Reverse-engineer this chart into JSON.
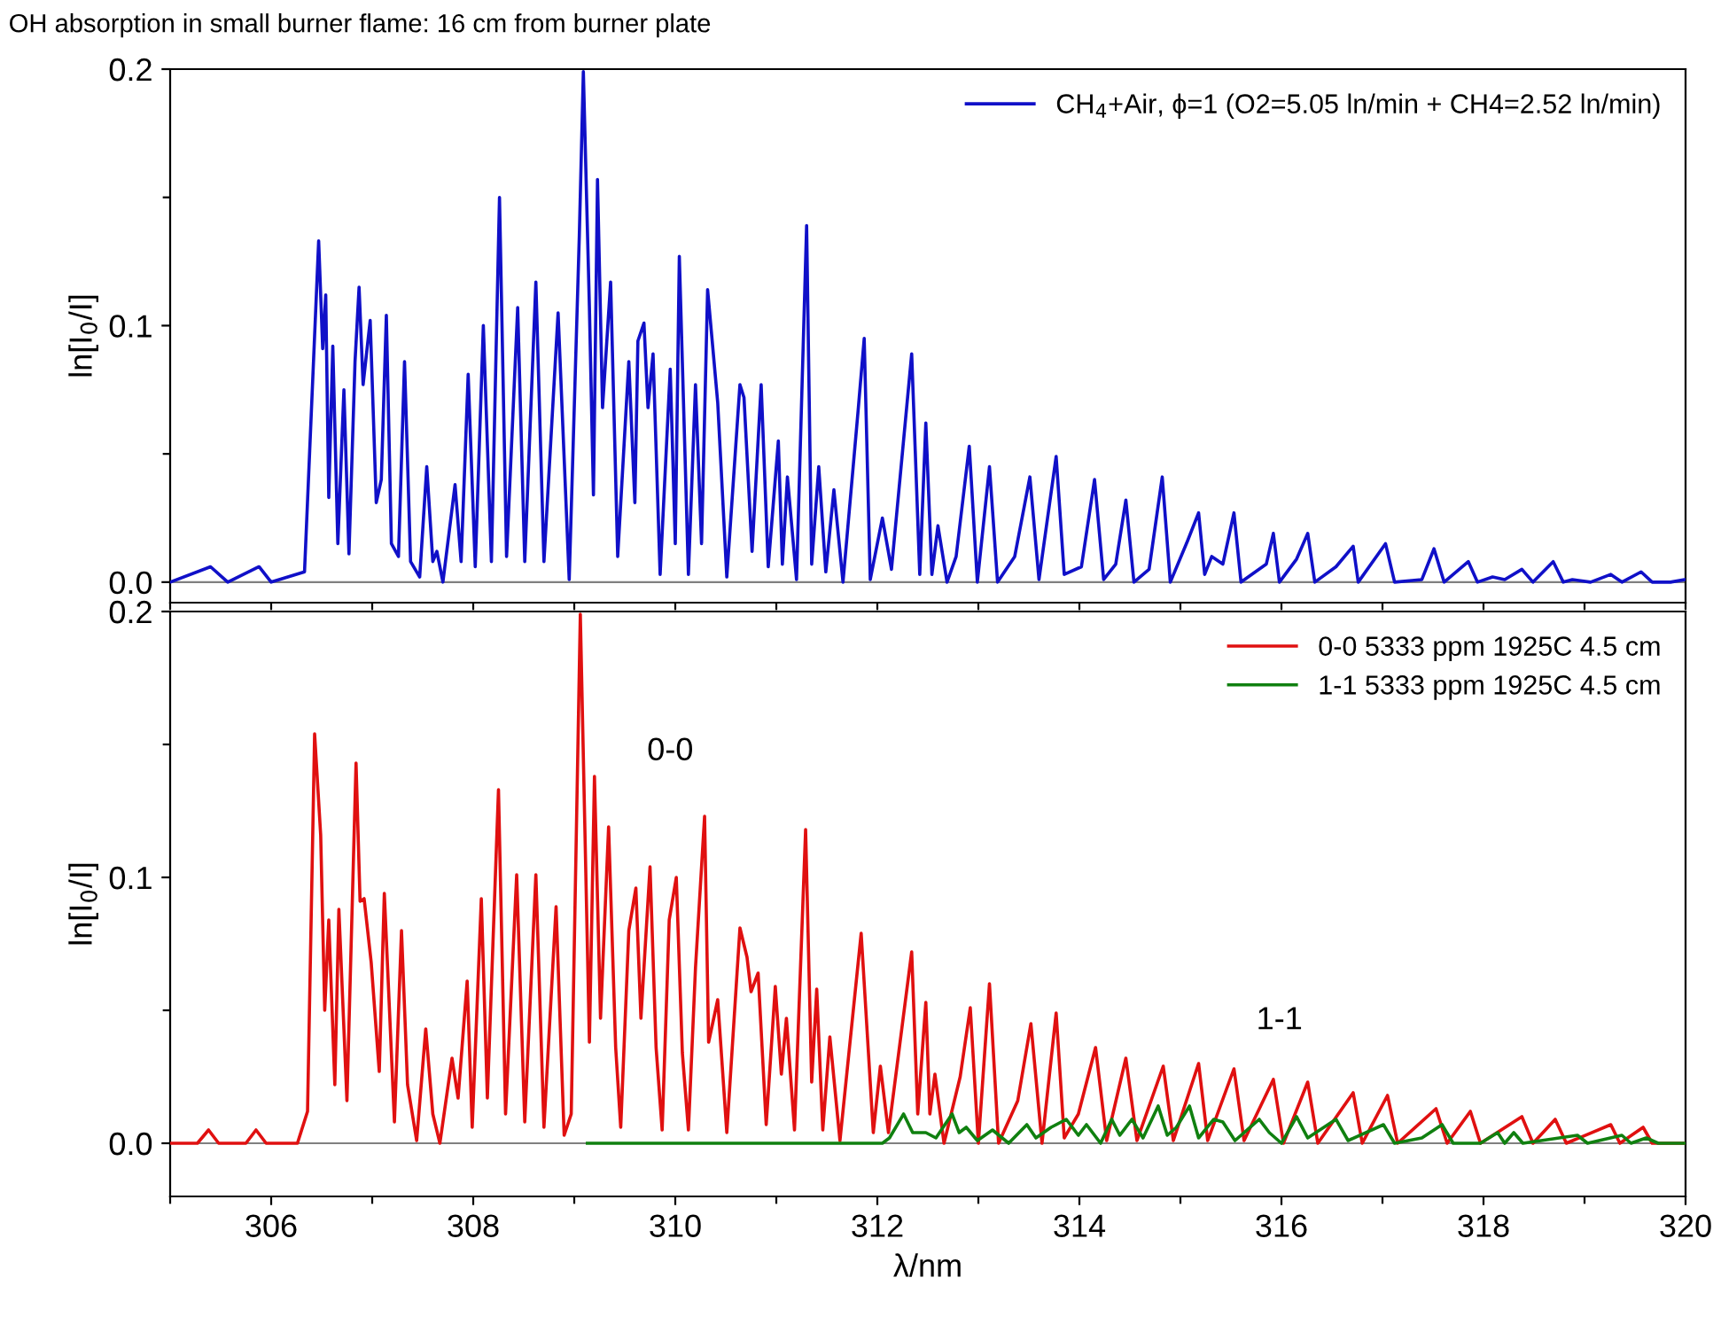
{
  "chart_data": [
    {
      "type": "line",
      "title": "OH absorption in small burner flame: 16 cm from burner plate",
      "ylabel": "ln[I$_{0}$/I]",
      "xlim": [
        305,
        320
      ],
      "xticks": [
        {
          "value": 305,
          "label": null
        },
        {
          "value": 306,
          "label": null
        },
        {
          "value": 307,
          "label": null
        },
        {
          "value": 308,
          "label": null
        },
        {
          "value": 309,
          "label": null
        },
        {
          "value": 310,
          "label": null
        },
        {
          "value": 311,
          "label": null
        },
        {
          "value": 312,
          "label": null
        },
        {
          "value": 313,
          "label": null
        },
        {
          "value": 314,
          "label": null
        },
        {
          "value": 315,
          "label": null
        },
        {
          "value": 316,
          "label": null
        },
        {
          "value": 317,
          "label": null
        },
        {
          "value": 318,
          "label": null
        },
        {
          "value": 319,
          "label": null
        },
        {
          "value": 320,
          "label": null
        }
      ],
      "ylim": [
        -0.008,
        0.2
      ],
      "yticks": [
        {
          "value": 0,
          "label": "0.0"
        },
        {
          "value": 0.05,
          "label": null
        },
        {
          "value": 0.1,
          "label": "0.1"
        },
        {
          "value": 0.15,
          "label": null
        },
        {
          "value": 0.2,
          "label": "0.2"
        }
      ],
      "tick_labels": "y",
      "legend": "top right",
      "grid": false,
      "ref_lines": [
        {
          "axis": "y",
          "value": 0,
          "color": "#808080"
        }
      ],
      "series": [
        {
          "name": "CH$_{4}$+Air, ϕ=1 (O2=5.05 ln/min + CH4=2.52 ln/min)",
          "color": "#1010c8",
          "x": [
            305.0,
            305.4,
            305.57,
            305.88,
            306.0,
            306.33,
            306.47,
            306.51,
            306.54,
            306.57,
            306.61,
            306.66,
            306.72,
            306.77,
            306.83,
            306.87,
            306.91,
            306.98,
            307.04,
            307.09,
            307.14,
            307.19,
            307.26,
            307.32,
            307.38,
            307.47,
            307.54,
            307.6,
            307.64,
            307.7,
            307.82,
            307.88,
            307.95,
            308.02,
            308.1,
            308.18,
            308.26,
            308.33,
            308.44,
            308.51,
            308.62,
            308.7,
            308.84,
            308.95,
            309.05,
            309.09,
            309.15,
            309.19,
            309.23,
            309.28,
            309.36,
            309.43,
            309.54,
            309.6,
            309.63,
            309.69,
            309.73,
            309.78,
            309.85,
            309.95,
            310.0,
            310.04,
            310.13,
            310.2,
            310.26,
            310.32,
            310.42,
            310.51,
            310.64,
            310.68,
            310.76,
            310.85,
            310.92,
            311.02,
            311.06,
            311.11,
            311.2,
            311.3,
            311.35,
            311.42,
            311.49,
            311.57,
            311.66,
            311.81,
            311.87,
            311.93,
            312.05,
            312.14,
            312.34,
            312.42,
            312.48,
            312.54,
            312.6,
            312.69,
            312.78,
            312.91,
            312.99,
            313.11,
            313.19,
            313.36,
            313.51,
            313.6,
            313.77,
            313.85,
            314.02,
            314.15,
            314.24,
            314.36,
            314.46,
            314.54,
            314.69,
            314.82,
            314.9,
            315.07,
            315.18,
            315.24,
            315.31,
            315.42,
            315.53,
            315.6,
            315.85,
            315.92,
            315.98,
            316.15,
            316.26,
            316.33,
            316.54,
            316.71,
            316.76,
            317.03,
            317.12,
            317.39,
            317.51,
            317.61,
            317.85,
            317.94,
            318.09,
            318.21,
            318.38,
            318.49,
            318.69,
            318.79,
            318.88,
            319.06,
            319.26,
            319.37,
            319.56,
            319.67,
            319.85,
            320.0
          ],
          "values": [
            0,
            0.006,
            0,
            0.006,
            0,
            0.004,
            0.133,
            0.091,
            0.112,
            0.033,
            0.092,
            0.015,
            0.075,
            0.011,
            0.086,
            0.115,
            0.077,
            0.102,
            0.031,
            0.04,
            0.104,
            0.015,
            0.01,
            0.086,
            0.008,
            0.002,
            0.045,
            0.008,
            0.012,
            0,
            0.038,
            0.008,
            0.081,
            0.006,
            0.1,
            0.008,
            0.15,
            0.01,
            0.107,
            0.008,
            0.117,
            0.008,
            0.105,
            0.001,
            0.135,
            0.199,
            0.107,
            0.034,
            0.157,
            0.068,
            0.117,
            0.01,
            0.086,
            0.031,
            0.094,
            0.101,
            0.068,
            0.089,
            0.003,
            0.083,
            0.015,
            0.127,
            0.003,
            0.077,
            0.015,
            0.114,
            0.07,
            0.002,
            0.077,
            0.072,
            0.012,
            0.077,
            0.006,
            0.055,
            0.007,
            0.041,
            0.001,
            0.139,
            0.007,
            0.045,
            0.004,
            0.036,
            0,
            0.067,
            0.095,
            0.001,
            0.025,
            0.005,
            0.089,
            0.003,
            0.062,
            0.003,
            0.022,
            0,
            0.01,
            0.053,
            0,
            0.045,
            0,
            0.01,
            0.041,
            0.001,
            0.049,
            0.003,
            0.006,
            0.04,
            0.001,
            0.007,
            0.032,
            0,
            0.005,
            0.041,
            0,
            0.016,
            0.027,
            0.003,
            0.01,
            0.007,
            0.027,
            0,
            0.007,
            0.019,
            0,
            0.009,
            0.019,
            0,
            0.006,
            0.014,
            0,
            0.015,
            0,
            0.001,
            0.013,
            0,
            0.008,
            0,
            0.002,
            0.001,
            0.005,
            0,
            0.008,
            0,
            0.001,
            0,
            0.003,
            0,
            0.004,
            0,
            0,
            0.001
          ]
        }
      ]
    },
    {
      "type": "line",
      "xlabel": "λ/nm",
      "ylabel": "ln[I$_{0}$/I]",
      "xlim": [
        305,
        320
      ],
      "xticks": [
        {
          "value": 305,
          "label": null
        },
        {
          "value": 306,
          "label": "306"
        },
        {
          "value": 307,
          "label": null
        },
        {
          "value": 308,
          "label": "308"
        },
        {
          "value": 309,
          "label": null
        },
        {
          "value": 310,
          "label": "310"
        },
        {
          "value": 311,
          "label": null
        },
        {
          "value": 312,
          "label": "312"
        },
        {
          "value": 313,
          "label": null
        },
        {
          "value": 314,
          "label": "314"
        },
        {
          "value": 315,
          "label": null
        },
        {
          "value": 316,
          "label": "316"
        },
        {
          "value": 317,
          "label": null
        },
        {
          "value": 318,
          "label": "318"
        },
        {
          "value": 319,
          "label": null
        },
        {
          "value": 320,
          "label": "320"
        }
      ],
      "ylim": [
        -0.02,
        0.2
      ],
      "yticks": [
        {
          "value": 0,
          "label": "0.0"
        },
        {
          "value": 0.05,
          "label": null
        },
        {
          "value": 0.1,
          "label": "0.1"
        },
        {
          "value": 0.15,
          "label": null
        },
        {
          "value": 0.2,
          "label": "0.2"
        }
      ],
      "legend": "top right",
      "grid": false,
      "ref_lines": [
        {
          "axis": "y",
          "value": 0,
          "color": "#808080"
        }
      ],
      "annotations": [
        "0-0",
        "1-1"
      ],
      "series": [
        {
          "name": "0-0 5333 ppm 1925C 4.5 cm",
          "color": "#e01010",
          "x": [
            305.0,
            305.27,
            305.38,
            305.48,
            305.75,
            305.85,
            305.95,
            306.26,
            306.36,
            306.43,
            306.49,
            306.53,
            306.57,
            306.63,
            306.67,
            306.75,
            306.84,
            306.88,
            306.92,
            306.99,
            307.07,
            307.12,
            307.22,
            307.29,
            307.35,
            307.44,
            307.53,
            307.6,
            307.67,
            307.79,
            307.85,
            307.94,
            307.99,
            308.08,
            308.14,
            308.25,
            308.32,
            308.43,
            308.51,
            308.62,
            308.7,
            308.82,
            308.9,
            308.97,
            309.06,
            309.15,
            309.2,
            309.26,
            309.34,
            309.41,
            309.46,
            309.54,
            309.61,
            309.66,
            309.75,
            309.81,
            309.87,
            309.94,
            310.01,
            310.07,
            310.13,
            310.2,
            310.29,
            310.33,
            310.42,
            310.51,
            310.64,
            310.71,
            310.75,
            310.82,
            310.9,
            310.99,
            311.05,
            311.1,
            311.18,
            311.29,
            311.35,
            311.4,
            311.46,
            311.53,
            311.63,
            311.84,
            311.96,
            312.03,
            312.11,
            312.34,
            312.4,
            312.48,
            312.52,
            312.57,
            312.66,
            312.82,
            312.92,
            313.0,
            313.11,
            313.2,
            313.39,
            313.52,
            313.63,
            313.77,
            313.85,
            313.99,
            314.16,
            314.27,
            314.46,
            314.57,
            314.83,
            314.93,
            315.18,
            315.27,
            315.53,
            315.63,
            315.92,
            316.02,
            316.26,
            316.36,
            316.71,
            316.8,
            317.05,
            317.15,
            317.53,
            317.64,
            317.87,
            317.97,
            318.38,
            318.49,
            318.71,
            318.82,
            319.26,
            319.35,
            319.58,
            319.67,
            320.0
          ],
          "values": [
            0,
            0,
            0.005,
            0,
            0,
            0.005,
            0,
            0,
            0.012,
            0.154,
            0.116,
            0.05,
            0.084,
            0.022,
            0.088,
            0.016,
            0.143,
            0.091,
            0.092,
            0.068,
            0.027,
            0.094,
            0.008,
            0.08,
            0.022,
            0.001,
            0.043,
            0.011,
            0,
            0.032,
            0.017,
            0.061,
            0.006,
            0.092,
            0.017,
            0.133,
            0.011,
            0.101,
            0.008,
            0.101,
            0.006,
            0.089,
            0.003,
            0.011,
            0.199,
            0.038,
            0.138,
            0.047,
            0.119,
            0.036,
            0.006,
            0.08,
            0.096,
            0.047,
            0.104,
            0.036,
            0.005,
            0.084,
            0.1,
            0.034,
            0.005,
            0.066,
            0.123,
            0.038,
            0.054,
            0.004,
            0.081,
            0.07,
            0.057,
            0.064,
            0.007,
            0.059,
            0.026,
            0.047,
            0.005,
            0.118,
            0.023,
            0.058,
            0.005,
            0.04,
            0.001,
            0.079,
            0.004,
            0.029,
            0.004,
            0.072,
            0.011,
            0.053,
            0.011,
            0.026,
            0,
            0.025,
            0.051,
            0,
            0.06,
            0,
            0.016,
            0.045,
            0,
            0.049,
            0.002,
            0.011,
            0.036,
            0.001,
            0.032,
            0.001,
            0.029,
            0.001,
            0.03,
            0.001,
            0.028,
            0.001,
            0.024,
            0,
            0.023,
            0,
            0.019,
            0,
            0.018,
            0,
            0.013,
            0,
            0.012,
            0,
            0.01,
            0,
            0.009,
            0,
            0.007,
            0,
            0.006,
            0,
            0
          ]
        },
        {
          "name": "1-1 5333 ppm 1925C 4.5 cm",
          "color": "#108010",
          "x": [
            309.13,
            312.05,
            312.12,
            312.26,
            312.35,
            312.48,
            312.58,
            312.74,
            312.81,
            312.88,
            312.99,
            313.14,
            313.3,
            313.48,
            313.57,
            313.72,
            313.87,
            313.99,
            314.07,
            314.21,
            314.32,
            314.4,
            314.52,
            314.63,
            314.78,
            314.87,
            314.96,
            315.09,
            315.18,
            315.33,
            315.42,
            315.54,
            315.78,
            315.88,
            316.0,
            316.15,
            316.26,
            316.42,
            316.54,
            316.66,
            317.01,
            317.12,
            317.39,
            317.59,
            317.7,
            317.97,
            318.14,
            318.21,
            318.3,
            318.39,
            318.93,
            319.03,
            319.37,
            319.46,
            319.61,
            319.73,
            320.0
          ],
          "values": [
            0,
            0,
            0.002,
            0.011,
            0.004,
            0.004,
            0.002,
            0.011,
            0.004,
            0.006,
            0.001,
            0.005,
            0,
            0.007,
            0.002,
            0.006,
            0.009,
            0.003,
            0.007,
            0,
            0.009,
            0.003,
            0.009,
            0.002,
            0.014,
            0.003,
            0.006,
            0.014,
            0.002,
            0.009,
            0.008,
            0.001,
            0.009,
            0.004,
            0,
            0.01,
            0.002,
            0.006,
            0.009,
            0.001,
            0.007,
            0,
            0.002,
            0.007,
            0,
            0,
            0.004,
            0,
            0.004,
            0,
            0.003,
            0,
            0.003,
            0,
            0.002,
            0,
            0
          ]
        }
      ]
    }
  ]
}
